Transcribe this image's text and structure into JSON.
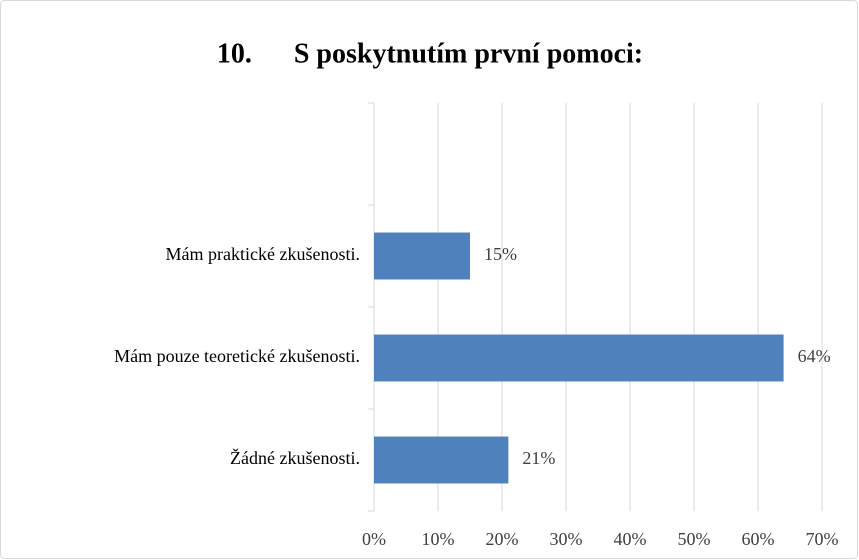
{
  "chart_data": {
    "type": "bar",
    "orientation": "horizontal",
    "title": "10.      S poskytnutím první pomoci:",
    "categories": [
      null,
      "Mám praktické zkušenosti.",
      "Mám pouze teoretické zkušenosti.",
      "Žádné zkušenosti."
    ],
    "values": [
      null,
      15,
      64,
      21
    ],
    "value_labels": [
      null,
      "15%",
      "64%",
      "21%"
    ],
    "color": "#4f81bd",
    "xlim": [
      0,
      70
    ],
    "xticks": [
      {
        "value": 0,
        "label": "0%"
      },
      {
        "value": 10,
        "label": "10%"
      },
      {
        "value": 20,
        "label": "20%"
      },
      {
        "value": 30,
        "label": "30%"
      },
      {
        "value": 40,
        "label": "40%"
      },
      {
        "value": 50,
        "label": "50%"
      },
      {
        "value": 60,
        "label": "60%"
      },
      {
        "value": 70,
        "label": "70%"
      }
    ],
    "grid": true
  }
}
